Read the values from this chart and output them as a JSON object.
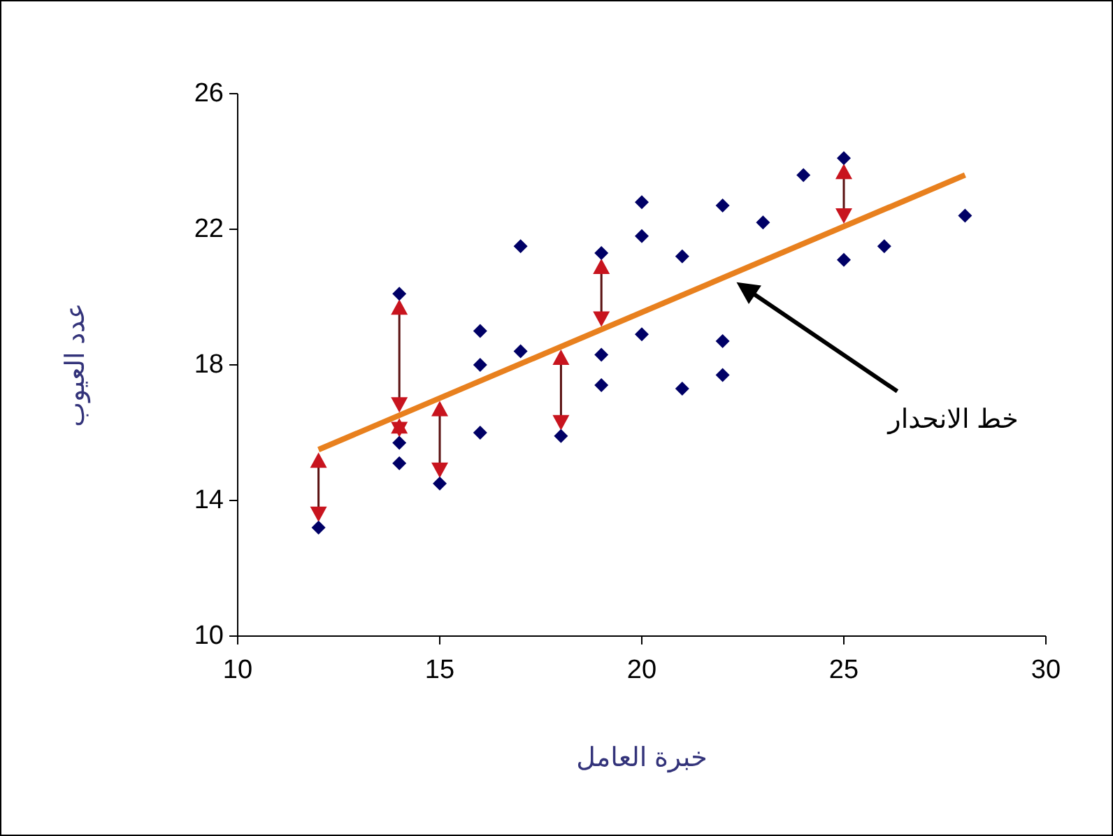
{
  "chart_data": {
    "type": "scatter",
    "xlabel": "خبرة العامل",
    "ylabel": "عدد العيوب",
    "xlim": [
      10,
      30
    ],
    "xticks": [
      10,
      15,
      20,
      25,
      30
    ],
    "ylim": [
      10,
      26
    ],
    "yticks": [
      10,
      14,
      18,
      22,
      26
    ],
    "grid": false,
    "series": [
      {
        "color": "#000066",
        "marker": "diamond",
        "x": [
          12,
          14,
          14,
          14,
          15,
          16,
          16,
          16,
          17,
          17,
          18,
          19,
          19,
          19,
          20,
          20,
          20,
          21,
          21,
          22,
          22,
          22,
          23,
          24,
          25,
          25,
          26,
          28
        ],
        "values": [
          13.2,
          20.1,
          15.7,
          15.1,
          14.5,
          19.0,
          18.0,
          16.0,
          21.5,
          18.4,
          15.9,
          21.3,
          18.3,
          17.4,
          22.8,
          21.8,
          18.9,
          21.2,
          17.3,
          22.7,
          18.7,
          17.7,
          22.2,
          23.6,
          24.1,
          21.1,
          21.5,
          22.4
        ]
      },
      {
        "type": "line",
        "color": "#e8801e",
        "marker": "none",
        "line_style": "solid",
        "x": [
          12,
          28
        ],
        "values": [
          15.5,
          23.6
        ]
      }
    ],
    "annotations": [
      "خط الانحدار"
    ]
  }
}
